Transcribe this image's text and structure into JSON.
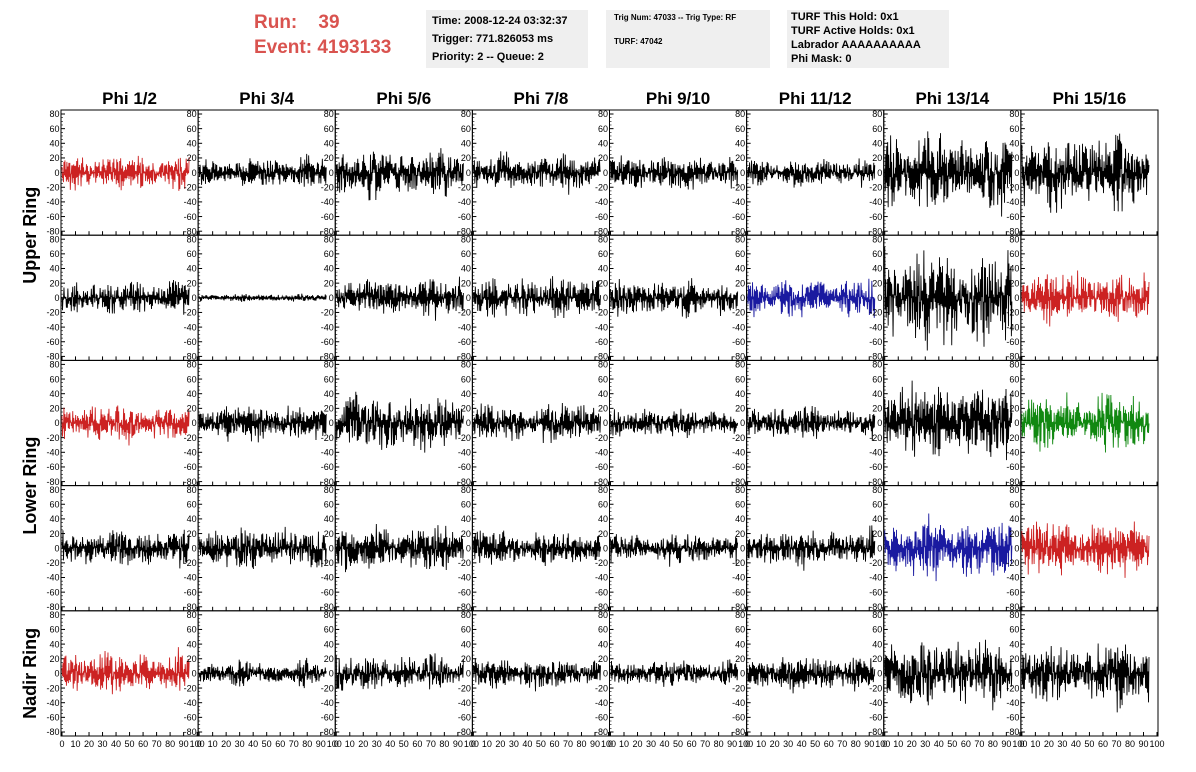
{
  "header": {
    "run_label": "Run:",
    "run_value": "39",
    "event_label": "Event:",
    "event_value": "4193133",
    "time_line": "Time: 2008-12-24 03:32:37",
    "trigger_line": "Trigger: 771.826053 ms",
    "priority_line": "Priority: 2 -- Queue: 2",
    "trig_num_line": "Trig Num: 47033 -- Trig Type: RF",
    "turf_line": "TURF: 47042",
    "turf_hold_line": "TURF This Hold: 0x1",
    "turf_active_line": "TURF Active Holds: 0x1",
    "labrador_line": "Labrador AAAAAAAAAA",
    "phi_mask_line": "Phi Mask: 0"
  },
  "colors": {
    "red": "#cc2222",
    "blue": "#1a1aa0",
    "green": "#118811",
    "black": "#000000"
  },
  "chart_data": {
    "type": "line",
    "columns": [
      "Phi 1/2",
      "Phi 3/4",
      "Phi 5/6",
      "Phi 7/8",
      "Phi 9/10",
      "Phi 11/12",
      "Phi 13/14",
      "Phi 15/16"
    ],
    "rings": [
      "Upper Ring",
      "Lower Ring",
      "Nadir Ring"
    ],
    "ring_row_spans": [
      [
        0,
        1
      ],
      [
        2,
        3
      ],
      [
        4
      ]
    ],
    "ylim": [
      -80,
      80
    ],
    "yticks": [
      -80,
      -60,
      -40,
      -20,
      0,
      20,
      40,
      60,
      80
    ],
    "xlim": [
      0,
      100
    ],
    "xticks": [
      0,
      10,
      20,
      30,
      40,
      50,
      60,
      70,
      80,
      90,
      100
    ],
    "panels": [
      [
        {
          "amp": 14,
          "color": "red"
        },
        {
          "amp": 12,
          "color": "black"
        },
        {
          "amp": 18,
          "color": "black"
        },
        {
          "amp": 14,
          "color": "black"
        },
        {
          "amp": 13,
          "color": "black"
        },
        {
          "amp": 11,
          "color": "black"
        },
        {
          "amp": 32,
          "color": "black"
        },
        {
          "amp": 30,
          "color": "black"
        }
      ],
      [
        {
          "amp": 14,
          "color": "black"
        },
        {
          "amp": 3,
          "color": "black"
        },
        {
          "amp": 15,
          "color": "black"
        },
        {
          "amp": 16,
          "color": "black"
        },
        {
          "amp": 14,
          "color": "black"
        },
        {
          "amp": 16,
          "color": "blue"
        },
        {
          "amp": 38,
          "color": "black"
        },
        {
          "amp": 20,
          "color": "red"
        }
      ],
      [
        {
          "amp": 14,
          "color": "red"
        },
        {
          "amp": 14,
          "color": "black"
        },
        {
          "amp": 22,
          "color": "black"
        },
        {
          "amp": 16,
          "color": "black"
        },
        {
          "amp": 11,
          "color": "black"
        },
        {
          "amp": 12,
          "color": "black"
        },
        {
          "amp": 30,
          "color": "black"
        },
        {
          "amp": 22,
          "color": "green"
        }
      ],
      [
        {
          "amp": 14,
          "color": "black"
        },
        {
          "amp": 16,
          "color": "black"
        },
        {
          "amp": 18,
          "color": "black"
        },
        {
          "amp": 14,
          "color": "black"
        },
        {
          "amp": 12,
          "color": "black"
        },
        {
          "amp": 15,
          "color": "black"
        },
        {
          "amp": 24,
          "color": "blue"
        },
        {
          "amp": 22,
          "color": "red"
        }
      ],
      [
        {
          "amp": 16,
          "color": "red"
        },
        {
          "amp": 10,
          "color": "black"
        },
        {
          "amp": 14,
          "color": "black"
        },
        {
          "amp": 12,
          "color": "black"
        },
        {
          "amp": 10,
          "color": "black"
        },
        {
          "amp": 14,
          "color": "black"
        },
        {
          "amp": 26,
          "color": "black"
        },
        {
          "amp": 26,
          "color": "black"
        }
      ]
    ]
  }
}
